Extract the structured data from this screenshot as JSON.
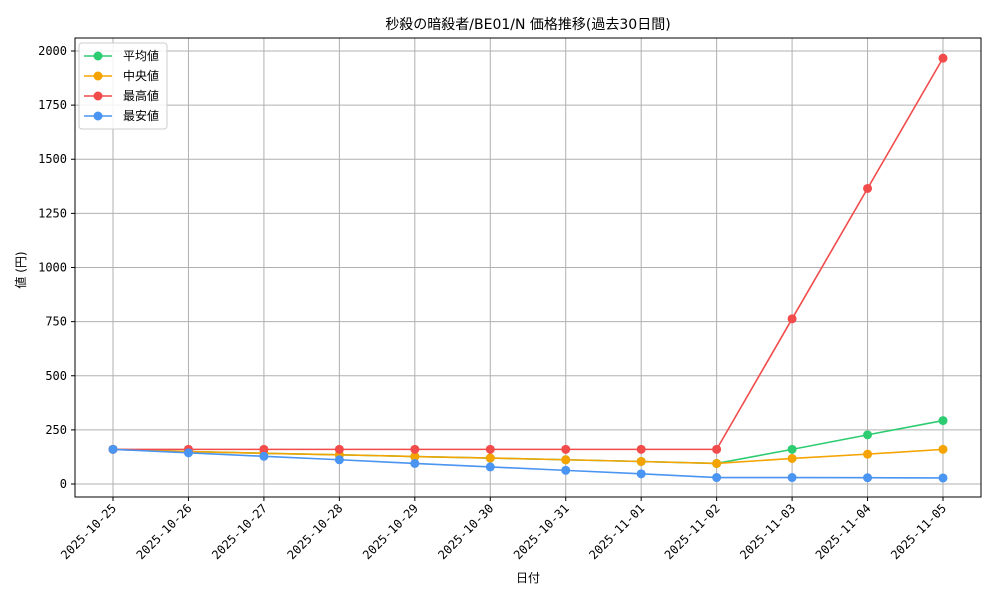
{
  "chart_data": {
    "type": "line",
    "title": "秒殺の暗殺者/BE01/N 価格推移(過去30日間)",
    "xlabel": "日付",
    "ylabel": "値 (円)",
    "categories": [
      "2025-10-25",
      "2025-10-26",
      "2025-10-27",
      "2025-10-28",
      "2025-10-29",
      "2025-10-30",
      "2025-10-31",
      "2025-11-01",
      "2025-11-02",
      "2025-11-03",
      "2025-11-04",
      "2025-11-05"
    ],
    "ylim": [
      -60,
      2060
    ],
    "yticks": [
      0,
      250,
      500,
      750,
      1000,
      1250,
      1500,
      1750,
      2000
    ],
    "grid": true,
    "legend_position": "top-left",
    "series": [
      {
        "name": "平均値",
        "color": "#2ecc71",
        "values": [
          160,
          150,
          142,
          135,
          127,
          120,
          112,
          104,
          95,
          160,
          227,
          293
        ]
      },
      {
        "name": "中央値",
        "color": "#f5a300",
        "values": [
          160,
          150,
          142,
          135,
          127,
          120,
          112,
          104,
          95,
          118,
          138,
          160
        ]
      },
      {
        "name": "最高値",
        "color": "#f24b4b",
        "values": [
          160,
          160,
          160,
          160,
          160,
          160,
          160,
          160,
          160,
          763,
          1365,
          1967
        ]
      },
      {
        "name": "最安値",
        "color": "#4a94f2",
        "values": [
          160,
          144,
          128,
          112,
          95,
          79,
          63,
          47,
          30,
          30,
          29,
          28
        ]
      }
    ]
  }
}
